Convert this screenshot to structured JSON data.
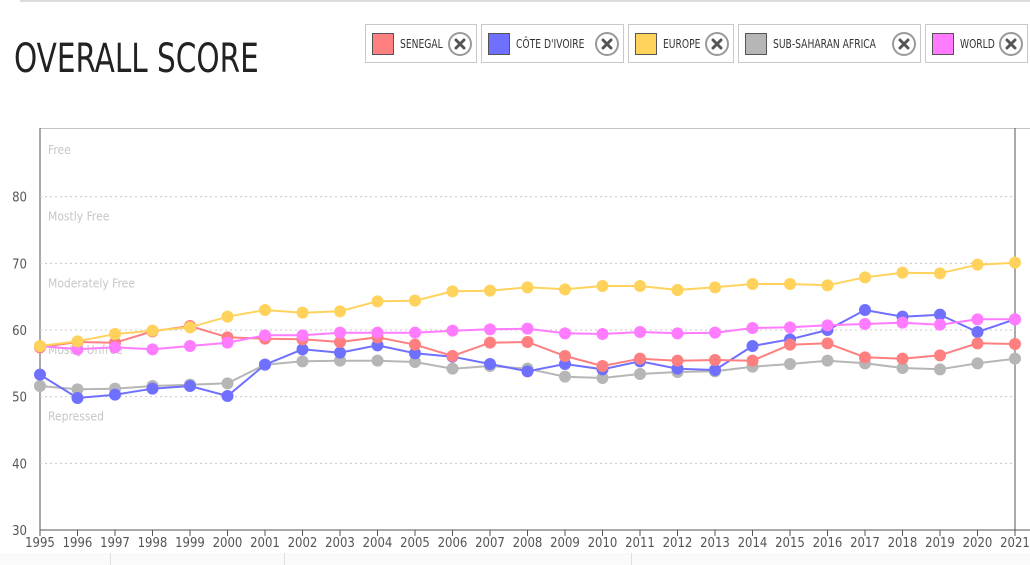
{
  "page": {
    "title": "OVERALL SCORE"
  },
  "legend": [
    {
      "label": "SENEGAL",
      "color": "#fd7f7f"
    },
    {
      "label": "CÔTE D'IVOIRE",
      "color": "#7070ff"
    },
    {
      "label": "EUROPE",
      "color": "#ffd25c"
    },
    {
      "label": "SUB-SAHARAN AFRICA",
      "color": "#b6b6b6"
    },
    {
      "label": "WORLD",
      "color": "#ff7bff"
    }
  ],
  "chart_data": {
    "type": "line",
    "title": "OVERALL SCORE",
    "xlabel": "",
    "ylabel": "",
    "ylim": [
      30,
      90
    ],
    "yticks": [
      30,
      40,
      50,
      60,
      70,
      80
    ],
    "grid": true,
    "legend_position": "top-right",
    "x": [
      "1995",
      "1996",
      "1997",
      "1998",
      "1999",
      "2000",
      "2001",
      "2002",
      "2003",
      "2004",
      "2005",
      "2006",
      "2007",
      "2008",
      "2009",
      "2010",
      "2011",
      "2012",
      "2013",
      "2014",
      "2015",
      "2016",
      "2017",
      "2018",
      "2019",
      "2020",
      "2021"
    ],
    "bands": [
      {
        "label": "Free",
        "value": 87
      },
      {
        "label": "Mostly Free",
        "value": 77
      },
      {
        "label": "Moderately Free",
        "value": 67
      },
      {
        "label": "Mostly Unfree",
        "value": 57
      },
      {
        "label": "Repressed",
        "value": 47
      }
    ],
    "series": [
      {
        "name": "SUB-SAHARAN AFRICA",
        "color": "#b6b6b6",
        "values": [
          51.6,
          51.1,
          51.2,
          51.6,
          51.8,
          52.0,
          54.8,
          55.3,
          55.4,
          55.4,
          55.2,
          54.2,
          54.6,
          54.2,
          53.0,
          52.8,
          53.4,
          53.7,
          53.8,
          54.5,
          54.9,
          55.4,
          55.0,
          54.3,
          54.1,
          55.0,
          55.7
        ]
      },
      {
        "name": "CÔTE D'IVOIRE",
        "color": "#7070ff",
        "values": [
          53.3,
          49.8,
          50.3,
          51.2,
          51.6,
          50.1,
          54.8,
          57.1,
          56.6,
          57.7,
          56.5,
          56.0,
          54.9,
          53.8,
          54.9,
          54.1,
          55.3,
          54.2,
          54.0,
          57.6,
          58.6,
          60.0,
          63.0,
          62.0,
          62.3,
          59.7,
          61.6
        ]
      },
      {
        "name": "SENEGAL",
        "color": "#fd7f7f",
        "values": [
          57.4,
          58.2,
          58.1,
          59.8,
          60.6,
          58.9,
          58.7,
          58.6,
          58.2,
          58.9,
          57.8,
          56.1,
          58.1,
          58.2,
          56.1,
          54.6,
          55.7,
          55.4,
          55.5,
          55.4,
          57.8,
          58.0,
          55.9,
          55.7,
          56.2,
          58.0,
          57.9
        ]
      },
      {
        "name": "WORLD",
        "color": "#ff7bff",
        "values": [
          57.6,
          57.1,
          57.4,
          57.1,
          57.6,
          58.1,
          59.2,
          59.2,
          59.6,
          59.6,
          59.6,
          59.9,
          60.1,
          60.2,
          59.5,
          59.4,
          59.7,
          59.5,
          59.6,
          60.3,
          60.4,
          60.7,
          60.9,
          61.1,
          60.8,
          61.6,
          61.6
        ]
      },
      {
        "name": "EUROPE",
        "color": "#ffd25c",
        "values": [
          57.6,
          58.3,
          59.4,
          59.9,
          60.4,
          62.0,
          63.0,
          62.6,
          62.8,
          64.3,
          64.4,
          65.8,
          65.9,
          66.4,
          66.1,
          66.6,
          66.6,
          66.0,
          66.4,
          66.9,
          66.9,
          66.7,
          67.9,
          68.6,
          68.5,
          69.8,
          70.1
        ]
      }
    ]
  }
}
